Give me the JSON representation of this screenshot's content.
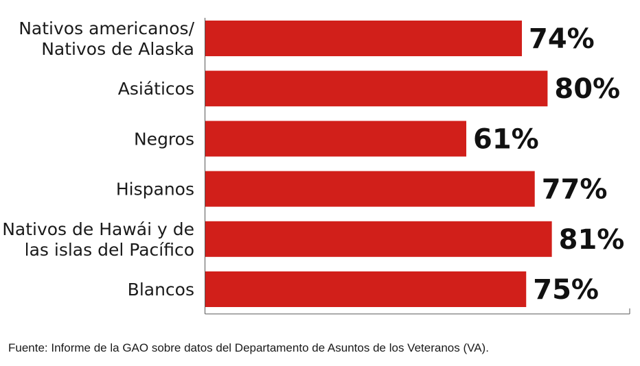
{
  "chart_data": {
    "type": "bar",
    "orientation": "horizontal",
    "categories": [
      [
        "Nativos americanos/",
        "Nativos de Alaska"
      ],
      [
        "Asiáticos"
      ],
      [
        "Negros"
      ],
      [
        "Hispanos"
      ],
      [
        "Nativos de Hawái y de",
        "las islas del Pacífico"
      ],
      [
        "Blancos"
      ]
    ],
    "values": [
      74,
      80,
      61,
      77,
      81,
      75
    ],
    "value_labels": [
      "74%",
      "80%",
      "61%",
      "77%",
      "81%",
      "75%"
    ],
    "xlim": [
      0,
      100
    ],
    "bar_color": "#d11f1a",
    "grid": false,
    "legend": "none"
  },
  "source": "Fuente: Informe de la GAO sobre datos del Departamento de Asuntos de los Veteranos (VA)."
}
